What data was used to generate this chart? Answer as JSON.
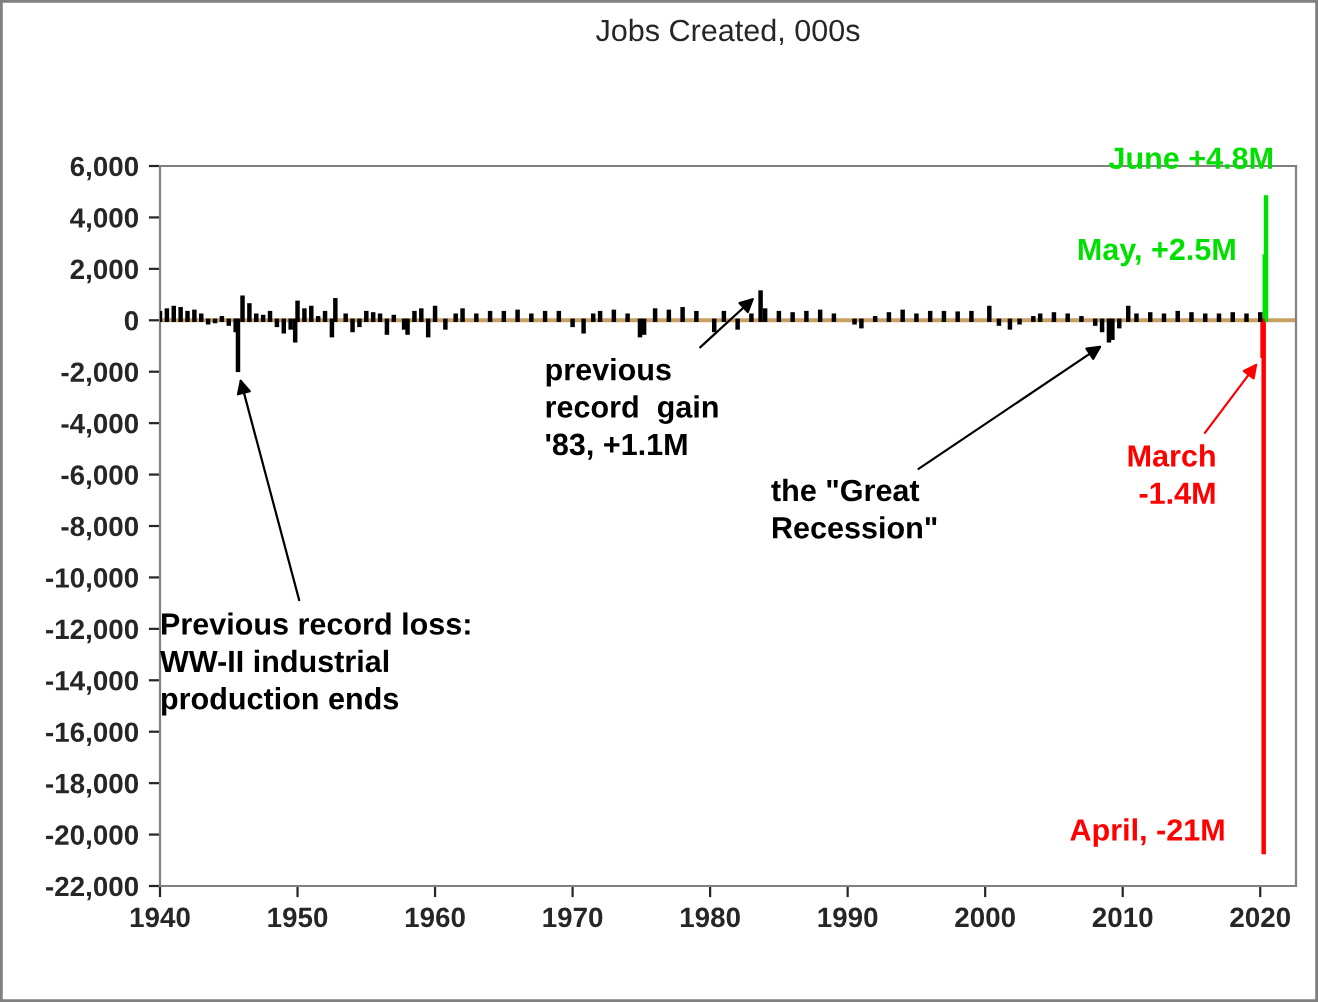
{
  "chart_data": {
    "type": "bar",
    "title": "Jobs Created, 000s",
    "x": [
      1940.0,
      1940.5,
      1941.0,
      1941.5,
      1942.0,
      1942.5,
      1943.0,
      1943.5,
      1944.0,
      1944.5,
      1945.0,
      1945.5,
      1945.67,
      1946.0,
      1946.5,
      1947.0,
      1947.5,
      1948.0,
      1948.5,
      1949.0,
      1949.5,
      1949.83,
      1950.0,
      1950.5,
      1951.0,
      1951.5,
      1952.0,
      1952.5,
      1952.75,
      1953.5,
      1954.0,
      1954.5,
      1955.0,
      1955.5,
      1956.0,
      1956.5,
      1957.0,
      1957.75,
      1958.0,
      1958.5,
      1959.0,
      1959.5,
      1960.0,
      1960.75,
      1961.5,
      1962.0,
      1963.0,
      1964.0,
      1965.0,
      1966.0,
      1967.0,
      1968.0,
      1969.0,
      1970.0,
      1970.8,
      1971.5,
      1972.0,
      1973.0,
      1974.0,
      1974.9,
      1975.2,
      1976.0,
      1977.0,
      1978.0,
      1979.0,
      1980.3,
      1981.0,
      1982.0,
      1983.0,
      1983.67,
      1984.0,
      1985.0,
      1986.0,
      1987.0,
      1988.0,
      1989.0,
      1990.5,
      1991.0,
      1992.0,
      1993.0,
      1994.0,
      1995.0,
      1996.0,
      1997.0,
      1998.0,
      1999.0,
      2000.3,
      2001.0,
      2001.8,
      2002.5,
      2003.5,
      2004.0,
      2005.0,
      2006.0,
      2007.0,
      2008.0,
      2008.5,
      2009.0,
      2009.25,
      2009.75,
      2010.4,
      2011.0,
      2012.0,
      2013.0,
      2014.0,
      2015.0,
      2016.0,
      2017.0,
      2018.0,
      2019.0,
      2020.0,
      2020.17,
      2020.25,
      2020.33,
      2020.42
    ],
    "values": [
      300,
      400,
      500,
      450,
      300,
      350,
      200,
      -100,
      -50,
      100,
      -150,
      -400,
      -1950,
      900,
      600,
      200,
      150,
      300,
      -200,
      -450,
      -300,
      -800,
      700,
      400,
      500,
      100,
      300,
      -600,
      800,
      200,
      -400,
      -200,
      300,
      250,
      200,
      -500,
      150,
      -300,
      -500,
      300,
      400,
      -600,
      500,
      -300,
      200,
      400,
      200,
      300,
      300,
      350,
      200,
      300,
      300,
      -200,
      -450,
      200,
      300,
      350,
      200,
      -600,
      -500,
      400,
      350,
      450,
      300,
      -400,
      300,
      -300,
      200,
      1100,
      400,
      300,
      250,
      300,
      350,
      200,
      -100,
      -250,
      100,
      250,
      350,
      200,
      300,
      300,
      280,
      300,
      500,
      -150,
      -300,
      -100,
      100,
      200,
      250,
      200,
      100,
      -150,
      -400,
      -800,
      -700,
      -250,
      500,
      200,
      250,
      200,
      300,
      250,
      200,
      200,
      250,
      200,
      250,
      -1400,
      -20700,
      2500,
      4800
    ],
    "colors": [
      "#000000",
      "#000000",
      "#000000",
      "#000000",
      "#000000",
      "#000000",
      "#000000",
      "#000000",
      "#000000",
      "#000000",
      "#000000",
      "#000000",
      "#000000",
      "#000000",
      "#000000",
      "#000000",
      "#000000",
      "#000000",
      "#000000",
      "#000000",
      "#000000",
      "#000000",
      "#000000",
      "#000000",
      "#000000",
      "#000000",
      "#000000",
      "#000000",
      "#000000",
      "#000000",
      "#000000",
      "#000000",
      "#000000",
      "#000000",
      "#000000",
      "#000000",
      "#000000",
      "#000000",
      "#000000",
      "#000000",
      "#000000",
      "#000000",
      "#000000",
      "#000000",
      "#000000",
      "#000000",
      "#000000",
      "#000000",
      "#000000",
      "#000000",
      "#000000",
      "#000000",
      "#000000",
      "#000000",
      "#000000",
      "#000000",
      "#000000",
      "#000000",
      "#000000",
      "#000000",
      "#000000",
      "#000000",
      "#000000",
      "#000000",
      "#000000",
      "#000000",
      "#000000",
      "#000000",
      "#000000",
      "#000000",
      "#000000",
      "#000000",
      "#000000",
      "#000000",
      "#000000",
      "#000000",
      "#000000",
      "#000000",
      "#000000",
      "#000000",
      "#000000",
      "#000000",
      "#000000",
      "#000000",
      "#000000",
      "#000000",
      "#000000",
      "#000000",
      "#000000",
      "#000000",
      "#000000",
      "#000000",
      "#000000",
      "#000000",
      "#000000",
      "#000000",
      "#000000",
      "#000000",
      "#000000",
      "#000000",
      "#000000",
      "#000000",
      "#000000",
      "#000000",
      "#000000",
      "#000000",
      "#000000",
      "#000000",
      "#000000",
      "#000000",
      "#000000",
      "#ff0000",
      "#ff0000",
      "#00e000",
      "#00e000"
    ],
    "xlim": [
      1940,
      2022.6
    ],
    "xticks": [
      1940,
      1950,
      1960,
      1970,
      1980,
      1990,
      2000,
      2010,
      2020
    ],
    "ylim": [
      -22000,
      6000
    ],
    "yticks": [
      {
        "value": -22000,
        "label": "-22,000"
      },
      {
        "value": -20000,
        "label": "-20,000"
      },
      {
        "value": -18000,
        "label": "-18,000"
      },
      {
        "value": -16000,
        "label": "-16,000"
      },
      {
        "value": -14000,
        "label": "-14,000"
      },
      {
        "value": -12000,
        "label": "-12,000"
      },
      {
        "value": -10000,
        "label": "-10,000"
      },
      {
        "value": -8000,
        "label": "-8,000"
      },
      {
        "value": -6000,
        "label": "-6,000"
      },
      {
        "value": -4000,
        "label": "-4,000"
      },
      {
        "value": -2000,
        "label": "-2,000"
      },
      {
        "value": 0,
        "label": "0"
      },
      {
        "value": 2000,
        "label": "2,000"
      },
      {
        "value": 4000,
        "label": "4,000"
      },
      {
        "value": 6000,
        "label": "6,000"
      }
    ],
    "ref_lines": [
      {
        "axis": "y",
        "value": 0,
        "color": "#c8a064"
      }
    ],
    "annotations": [
      {
        "text": "Previous record loss:\nWW-II industrial\nproduction ends",
        "x": 1945.67,
        "y": -1950
      },
      {
        "text": "previous\nrecord  gain\n'83, +1.1M",
        "x": 1983.67,
        "y": 1100
      },
      {
        "text": "the \"Great\nRecession\"",
        "x": 2009.0,
        "y": -800
      },
      {
        "text": "March\n-1.4M",
        "x": 2020.17,
        "y": -1400
      },
      {
        "text": "April, -21M",
        "x": 2020.25,
        "y": -20700
      },
      {
        "text": "May, +2.5M",
        "x": 2020.33,
        "y": 2500
      },
      {
        "text": "June +4.8M",
        "x": 2020.42,
        "y": 4800
      }
    ],
    "grid": false,
    "legend": false
  }
}
